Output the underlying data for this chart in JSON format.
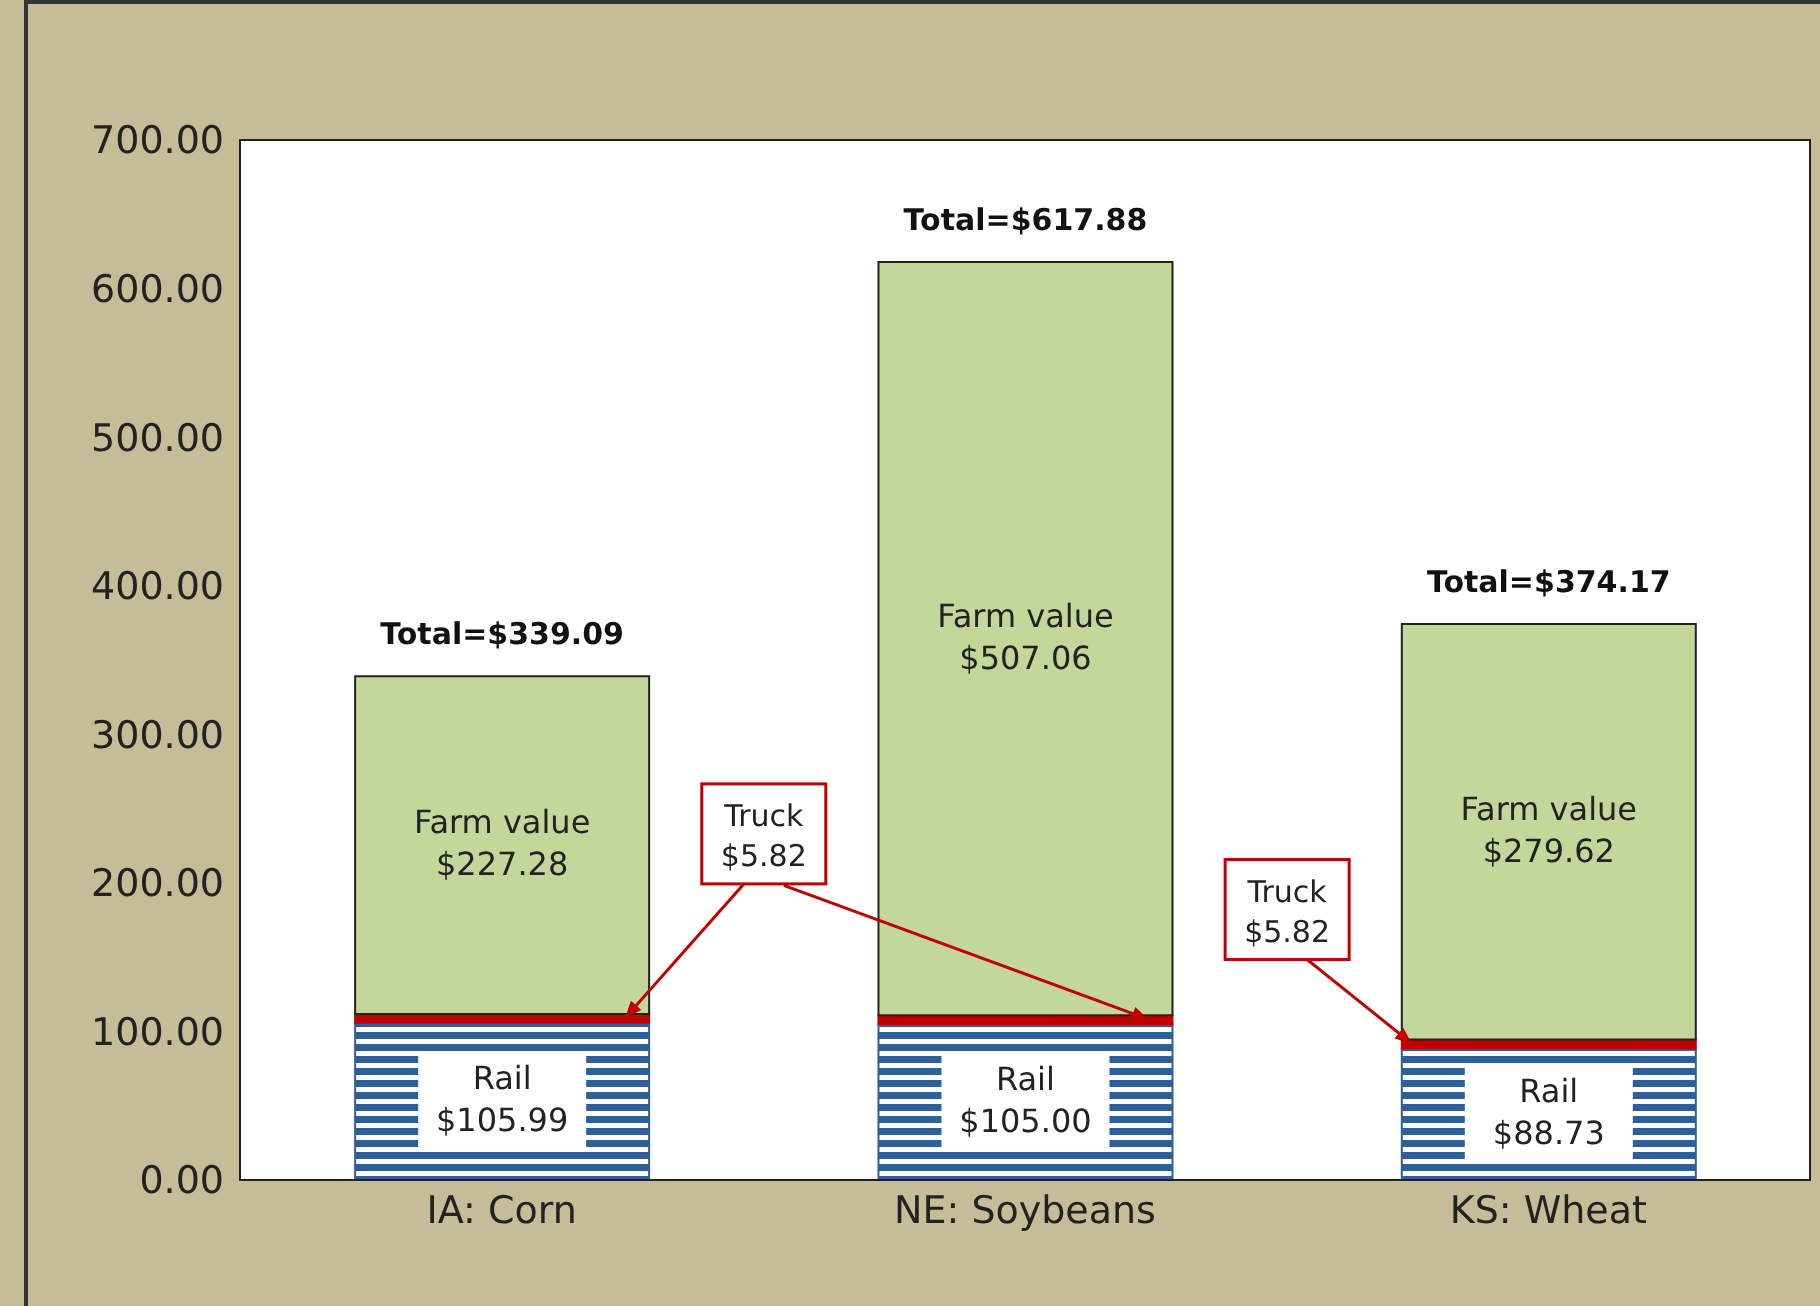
{
  "chart_data": {
    "type": "bar",
    "stacked": true,
    "categories": [
      "IA: Corn",
      "NE: Soybeans",
      "KS: Wheat"
    ],
    "series": [
      {
        "name": "Rail",
        "color": "#2e5f9a",
        "values": [
          105.99,
          105.0,
          88.73
        ],
        "value_labels": [
          "$105.99",
          "$105.00",
          "$88.73"
        ]
      },
      {
        "name": "Truck",
        "color": "#c00000",
        "values": [
          5.82,
          5.82,
          5.82
        ],
        "value_labels": [
          "$5.82",
          null,
          "$5.82"
        ]
      },
      {
        "name": "Farm value",
        "color": "#c4d79b",
        "values": [
          227.28,
          507.06,
          279.62
        ],
        "value_labels": [
          "$227.28",
          "$507.06",
          "$279.62"
        ]
      }
    ],
    "totals": [
      "Total=$339.09",
      "Total=$617.88",
      "Total=$374.17"
    ],
    "ylim": [
      0,
      700
    ],
    "yticks": [
      {
        "value": 0,
        "label": "0.00"
      },
      {
        "value": 100,
        "label": "100.00"
      },
      {
        "value": 200,
        "label": "200.00"
      },
      {
        "value": 300,
        "label": "300.00"
      },
      {
        "value": 400,
        "label": "400.00"
      },
      {
        "value": 500,
        "label": "500.00"
      },
      {
        "value": 600,
        "label": "600.00"
      },
      {
        "value": 700,
        "label": "700.00"
      }
    ],
    "legend": false
  }
}
